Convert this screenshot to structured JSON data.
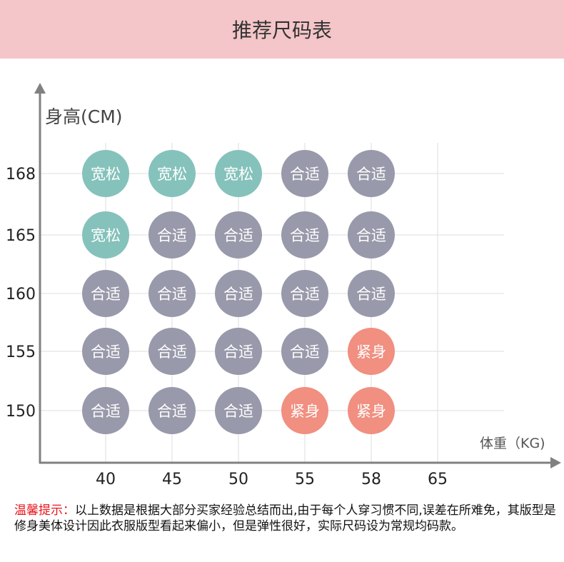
{
  "header": {
    "title": "推荐尺码表"
  },
  "colors": {
    "宽松": "#85c2bb",
    "合适": "#9899aa",
    "紧身": "#f18f80",
    "header": "#f4c6c9"
  },
  "chart_data": {
    "type": "scatter",
    "title": "推荐尺码表",
    "ylabel": "身高(CM)",
    "xlabel": "体重（KG)",
    "x_ticks": [
      "40",
      "45",
      "50",
      "55",
      "58",
      "65"
    ],
    "y_ticks": [
      "168",
      "165",
      "160",
      "155",
      "150"
    ],
    "grid": true,
    "points": [
      {
        "x": "40",
        "y": "168",
        "label": "宽松"
      },
      {
        "x": "45",
        "y": "168",
        "label": "宽松"
      },
      {
        "x": "50",
        "y": "168",
        "label": "宽松"
      },
      {
        "x": "55",
        "y": "168",
        "label": "合适"
      },
      {
        "x": "58",
        "y": "168",
        "label": "合适"
      },
      {
        "x": "40",
        "y": "165",
        "label": "宽松"
      },
      {
        "x": "45",
        "y": "165",
        "label": "合适"
      },
      {
        "x": "50",
        "y": "165",
        "label": "合适"
      },
      {
        "x": "55",
        "y": "165",
        "label": "合适"
      },
      {
        "x": "58",
        "y": "165",
        "label": "合适"
      },
      {
        "x": "40",
        "y": "160",
        "label": "合适"
      },
      {
        "x": "45",
        "y": "160",
        "label": "合适"
      },
      {
        "x": "50",
        "y": "160",
        "label": "合适"
      },
      {
        "x": "55",
        "y": "160",
        "label": "合适"
      },
      {
        "x": "58",
        "y": "160",
        "label": "合适"
      },
      {
        "x": "40",
        "y": "155",
        "label": "合适"
      },
      {
        "x": "45",
        "y": "155",
        "label": "合适"
      },
      {
        "x": "50",
        "y": "155",
        "label": "合适"
      },
      {
        "x": "55",
        "y": "155",
        "label": "合适"
      },
      {
        "x": "58",
        "y": "155",
        "label": "紧身"
      },
      {
        "x": "40",
        "y": "150",
        "label": "合适"
      },
      {
        "x": "45",
        "y": "150",
        "label": "合适"
      },
      {
        "x": "50",
        "y": "150",
        "label": "合适"
      },
      {
        "x": "55",
        "y": "150",
        "label": "紧身"
      },
      {
        "x": "58",
        "y": "150",
        "label": "紧身"
      }
    ]
  },
  "note": {
    "label": "温馨提示：",
    "text": "以上数据是根据大部分买家经验总结而出,由于每个人穿习惯不同,误差在所难免，其版型是修身美体设计因此衣服版型看起来偏小，但是弹性很好，实际尺码设为常规均码款。"
  }
}
